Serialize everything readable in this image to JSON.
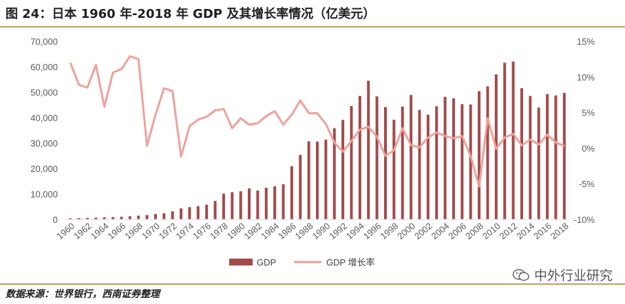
{
  "header": {
    "title": "图 24：日本 1960 年-2018 年 GDP 及其增长率情况（亿美元）"
  },
  "footer": {
    "source": "数据来源：世界银行，西南证券整理",
    "watermark": "中外行业研究"
  },
  "colors": {
    "bar": "#a34a4a",
    "line": "#f0a09a",
    "rule": "#bf9f63"
  },
  "chart_data": {
    "type": "bar+line",
    "title": "日本 1960 年-2018 年 GDP 及其增长率情况（亿美元）",
    "categories": [
      1960,
      1961,
      1962,
      1963,
      1964,
      1965,
      1966,
      1967,
      1968,
      1969,
      1970,
      1971,
      1972,
      1973,
      1974,
      1975,
      1976,
      1977,
      1978,
      1979,
      1980,
      1981,
      1982,
      1983,
      1984,
      1985,
      1986,
      1987,
      1988,
      1989,
      1990,
      1991,
      1992,
      1993,
      1994,
      1995,
      1996,
      1997,
      1998,
      1999,
      2000,
      2001,
      2002,
      2003,
      2004,
      2005,
      2006,
      2007,
      2008,
      2009,
      2010,
      2011,
      2012,
      2013,
      2014,
      2015,
      2016,
      2017,
      2018
    ],
    "x_tick_labels": [
      "1960",
      "1962",
      "1964",
      "1966",
      "1968",
      "1970",
      "1972",
      "1974",
      "1976",
      "1978",
      "1980",
      "1982",
      "1984",
      "1986",
      "1988",
      "1990",
      "1992",
      "1994",
      "1996",
      "1998",
      "2000",
      "2002",
      "2004",
      "2006",
      "2008",
      "2010",
      "2012",
      "2014",
      "2016",
      "2018"
    ],
    "series": [
      {
        "name": "GDP",
        "type": "bar",
        "axis": "left",
        "values": [
          443,
          535,
          608,
          698,
          817,
          910,
          1054,
          1234,
          1464,
          1722,
          2126,
          2401,
          3180,
          4321,
          4822,
          5217,
          5769,
          7251,
          10124,
          10700,
          11054,
          12186,
          11349,
          12438,
          13006,
          13850,
          20910,
          25360,
          30719,
          30563,
          31329,
          35844,
          39089,
          44549,
          48498,
          54492,
          48337,
          44143,
          39149,
          44322,
          48875,
          43037,
          41150,
          44457,
          48153,
          47554,
          45304,
          45153,
          50377,
          52314,
          57001,
          61574,
          62032,
          51557,
          48504,
          43947,
          49267,
          48731,
          49713
        ]
      },
      {
        "name": "GDP 增长率",
        "type": "line",
        "axis": "right",
        "values": [
          12.0,
          8.9,
          8.5,
          11.7,
          5.8,
          10.6,
          11.1,
          12.9,
          12.5,
          0.3,
          4.7,
          8.4,
          8.0,
          -1.2,
          3.1,
          4.0,
          4.4,
          5.3,
          5.5,
          2.8,
          4.2,
          3.3,
          3.5,
          4.5,
          5.2,
          3.3,
          4.7,
          6.7,
          4.9,
          4.9,
          3.4,
          0.8,
          -0.5,
          1.0,
          2.6,
          3.0,
          1.6,
          -1.1,
          -0.3,
          2.8,
          0.4,
          0.1,
          1.5,
          2.2,
          1.7,
          1.4,
          1.7,
          -1.1,
          -5.4,
          4.2,
          -0.1,
          1.5,
          2.0,
          0.4,
          1.2,
          0.5,
          1.9,
          0.8,
          0.3
        ]
      }
    ],
    "y_left": {
      "min": 0,
      "max": 70000,
      "ticks": [
        "0",
        "10,000",
        "20,000",
        "30,000",
        "40,000",
        "50,000",
        "60,000",
        "70,000"
      ]
    },
    "y_right": {
      "min": -10,
      "max": 15,
      "ticks": [
        "-10%",
        "-5%",
        "0%",
        "5%",
        "10%",
        "15%"
      ]
    },
    "legend": {
      "position": "bottom",
      "items": [
        "GDP",
        "GDP 增长率"
      ]
    },
    "grid": false
  }
}
